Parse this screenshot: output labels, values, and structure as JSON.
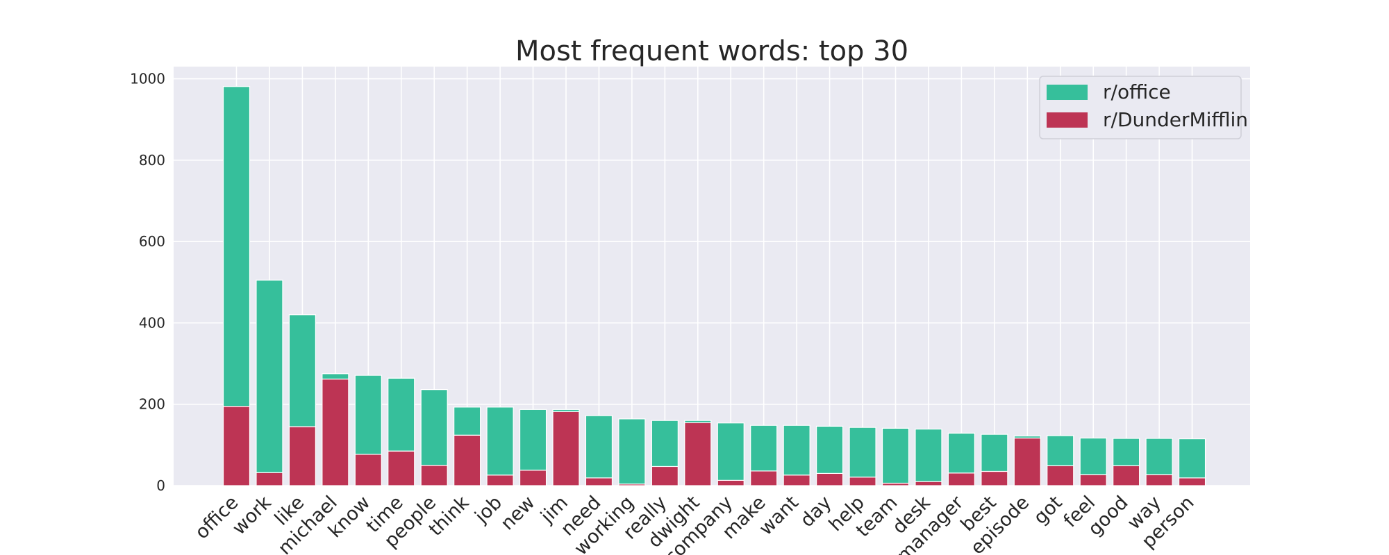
{
  "chart_data": {
    "type": "bar",
    "stacked": true,
    "title": "Most frequent words: top 30",
    "xlabel": "",
    "ylabel": "",
    "ylim": [
      0,
      1030
    ],
    "yticks": [
      0,
      200,
      400,
      600,
      800,
      1000
    ],
    "grid": true,
    "legend_position": "top-right",
    "categories": [
      "office",
      "work",
      "like",
      "michael",
      "know",
      "time",
      "people",
      "think",
      "job",
      "new",
      "jim",
      "need",
      "working",
      "really",
      "dwight",
      "company",
      "make",
      "want",
      "day",
      "help",
      "team",
      "desk",
      "manager",
      "best",
      "episode",
      "got",
      "feel",
      "good",
      "way",
      "person"
    ],
    "series": [
      {
        "name": "r/office",
        "color": "#36bf9b",
        "values": [
          786,
          473,
          275,
          13,
          194,
          179,
          186,
          69,
          167,
          149,
          5,
          153,
          160,
          113,
          5,
          141,
          112,
          122,
          116,
          122,
          135,
          129,
          98,
          91,
          5,
          74,
          90,
          67,
          89,
          96
        ]
      },
      {
        "name": "r/DunderMifflin",
        "color": "#bd3454",
        "values": [
          195,
          32,
          145,
          262,
          77,
          85,
          50,
          124,
          26,
          38,
          182,
          19,
          4,
          47,
          155,
          13,
          36,
          26,
          30,
          21,
          6,
          10,
          31,
          35,
          117,
          49,
          27,
          49,
          27,
          19
        ]
      }
    ]
  }
}
